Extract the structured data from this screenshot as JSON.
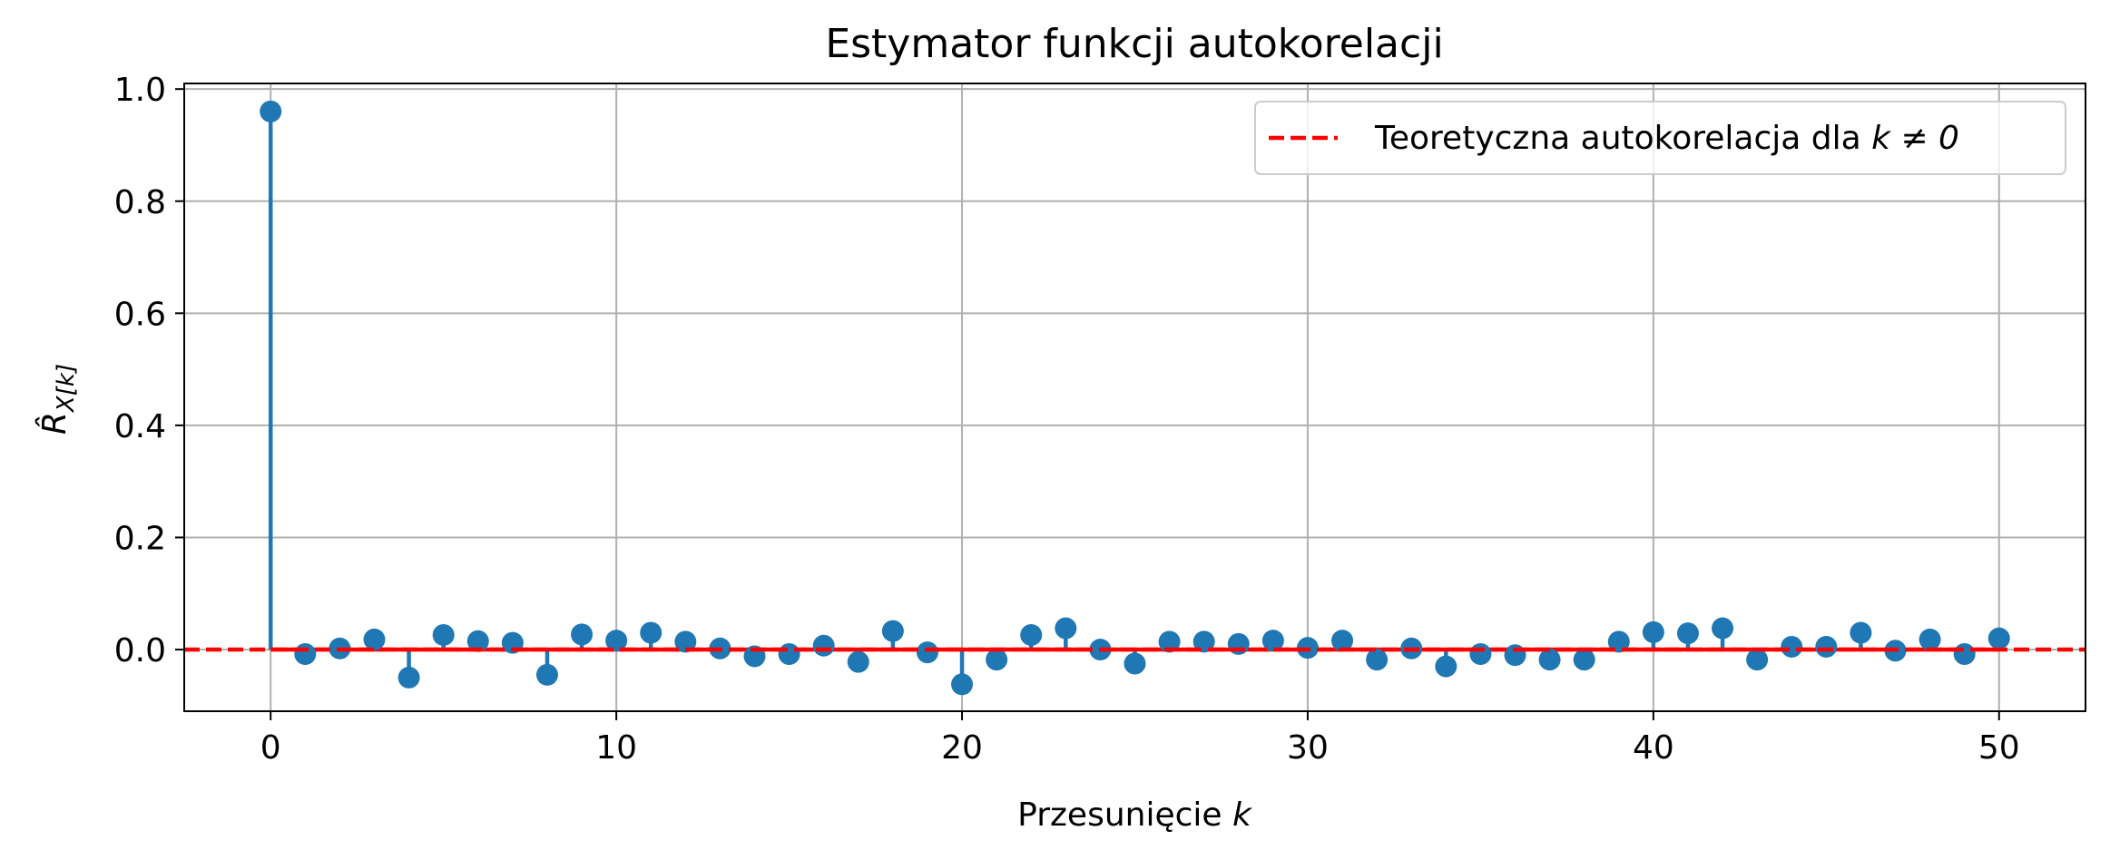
{
  "chart_data": {
    "type": "stem",
    "title": "Estymator funkcji autokorelacji",
    "xlabel_prefix": "Przesunięcie ",
    "xlabel_var": "k",
    "ylabel_main": "R̂",
    "ylabel_sub": "X[k]",
    "xlim": [
      -2.5,
      52.5
    ],
    "ylim": [
      -0.11,
      1.01
    ],
    "xticks": [
      0,
      10,
      20,
      30,
      40,
      50
    ],
    "xtick_labels": [
      "0",
      "10",
      "20",
      "30",
      "40",
      "50"
    ],
    "yticks": [
      0.0,
      0.2,
      0.4,
      0.6,
      0.8,
      1.0
    ],
    "ytick_labels": [
      "0.0",
      "0.2",
      "0.4",
      "0.6",
      "0.8",
      "1.0"
    ],
    "grid": true,
    "legend_position": "top-right",
    "colors": {
      "stem": "#1f77b4",
      "reference": "#ff0000",
      "grid": "#b0b0b0"
    },
    "series": [
      {
        "name": "",
        "x": [
          0,
          1,
          2,
          3,
          4,
          5,
          6,
          7,
          8,
          9,
          10,
          11,
          12,
          13,
          14,
          15,
          16,
          17,
          18,
          19,
          20,
          21,
          22,
          23,
          24,
          25,
          26,
          27,
          28,
          29,
          30,
          31,
          32,
          33,
          34,
          35,
          36,
          37,
          38,
          39,
          40,
          41,
          42,
          43,
          44,
          45,
          46,
          47,
          48,
          49,
          50
        ],
        "y": [
          0.96,
          -0.008,
          0.002,
          0.018,
          -0.05,
          0.026,
          0.015,
          0.012,
          -0.045,
          0.027,
          0.016,
          0.03,
          0.014,
          0.002,
          -0.012,
          -0.008,
          0.007,
          -0.022,
          0.033,
          -0.005,
          -0.062,
          -0.018,
          0.026,
          0.038,
          0.0,
          -0.025,
          0.014,
          0.014,
          0.01,
          0.016,
          0.003,
          0.016,
          -0.018,
          0.002,
          -0.03,
          -0.008,
          -0.01,
          -0.018,
          -0.018,
          0.014,
          0.031,
          0.029,
          0.038,
          -0.018,
          0.005,
          0.005,
          0.03,
          -0.002,
          0.018,
          -0.008,
          0.02
        ]
      }
    ],
    "reference_line": {
      "y": 0,
      "legend_prefix": "Teoretyczna autokorelacja dla ",
      "legend_math": "k ≠ 0"
    }
  }
}
